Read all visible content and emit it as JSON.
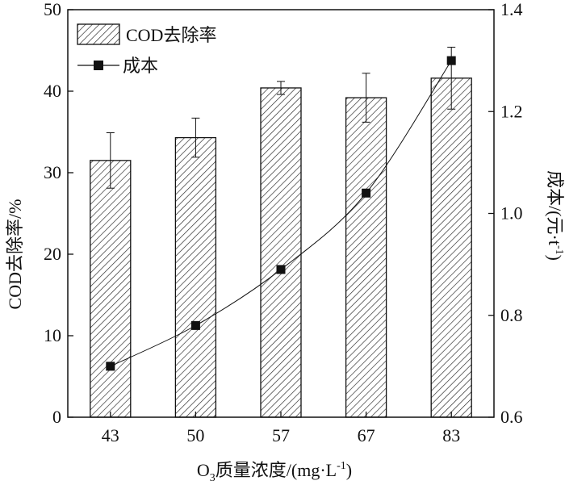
{
  "chart_data": {
    "type": "bar",
    "categories": [
      "43",
      "50",
      "57",
      "67",
      "83"
    ],
    "xlabel": {
      "prefix": "O",
      "sub": "3",
      "rest": "质量浓度/(mg·L",
      "sup": "-1",
      "end": ")"
    },
    "ylabel_left": "COD去除率/%",
    "ylabel_right": {
      "text": "成本/(元·t",
      "sup": "-1",
      "end": ")"
    },
    "ylim_left": [
      0,
      50
    ],
    "ylim_right": [
      0.6,
      1.4
    ],
    "yticks_left": [
      "0",
      "10",
      "20",
      "30",
      "40",
      "50"
    ],
    "yticks_right": [
      "0.6",
      "0.8",
      "1.0",
      "1.2",
      "1.4"
    ],
    "series": [
      {
        "name": "COD去除率",
        "type": "bar",
        "axis": "left",
        "values": [
          31.5,
          34.3,
          40.4,
          39.2,
          41.6
        ],
        "error": [
          3.4,
          2.4,
          0.8,
          3.0,
          3.8
        ],
        "pattern": "hatch"
      },
      {
        "name": "成本",
        "type": "line",
        "axis": "right",
        "values": [
          0.7,
          0.78,
          0.89,
          1.04,
          1.3
        ],
        "marker": "square"
      }
    ],
    "legend_position": "top-left",
    "grid": false
  }
}
